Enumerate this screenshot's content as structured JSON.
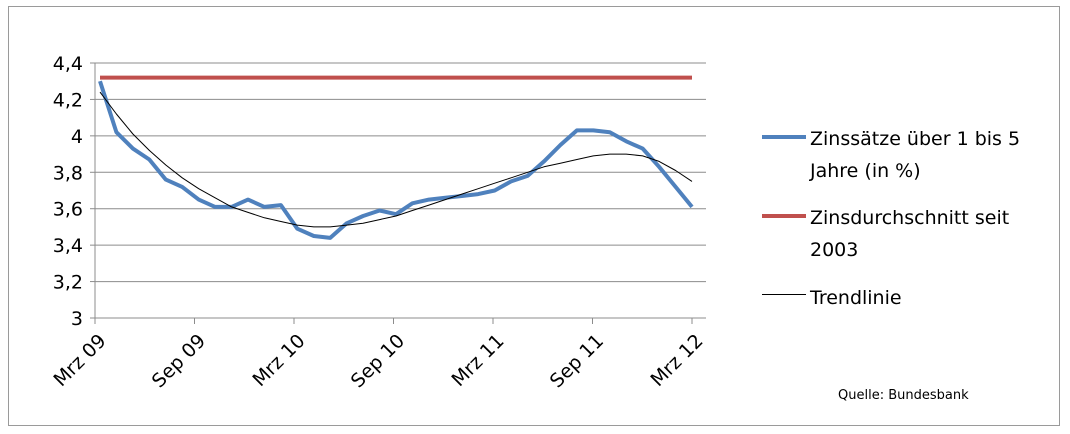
{
  "chart_data": {
    "type": "line",
    "categories": [
      "Mrz 09",
      null,
      null,
      null,
      null,
      null,
      "Sep 09",
      null,
      null,
      null,
      null,
      null,
      "Mrz 10",
      null,
      null,
      null,
      null,
      null,
      "Sep 10",
      null,
      null,
      null,
      null,
      null,
      "Mrz 11",
      null,
      null,
      null,
      null,
      null,
      "Sep 11",
      null,
      null,
      null,
      null,
      null,
      "Mrz 12"
    ],
    "series": [
      {
        "name": "Zinssätze über 1 bis 5 Jahre (in %)",
        "color": "#4f81bd",
        "values": [
          4.3,
          4.02,
          3.93,
          3.87,
          3.76,
          3.72,
          3.65,
          3.61,
          3.61,
          3.65,
          3.61,
          3.62,
          3.49,
          3.45,
          3.44,
          3.52,
          3.56,
          3.59,
          3.57,
          3.63,
          3.65,
          3.66,
          3.67,
          3.68,
          3.7,
          3.75,
          3.78,
          3.86,
          3.95,
          4.03,
          4.03,
          4.02,
          3.97,
          3.93,
          3.83,
          3.72,
          3.61
        ]
      },
      {
        "name": "Zinsdurchschnitt seit 2003",
        "color": "#c0504d",
        "values": [
          4.32,
          4.32,
          4.32,
          4.32,
          4.32,
          4.32,
          4.32,
          4.32,
          4.32,
          4.32,
          4.32,
          4.32,
          4.32,
          4.32,
          4.32,
          4.32,
          4.32,
          4.32,
          4.32,
          4.32,
          4.32,
          4.32,
          4.32,
          4.32,
          4.32,
          4.32,
          4.32,
          4.32,
          4.32,
          4.32,
          4.32,
          4.32,
          4.32,
          4.32,
          4.32,
          4.32,
          4.32
        ]
      },
      {
        "name": "Trendlinie",
        "color": "#000000",
        "values": [
          4.24,
          4.12,
          4.01,
          3.92,
          3.84,
          3.77,
          3.71,
          3.66,
          3.61,
          3.58,
          3.55,
          3.53,
          3.51,
          3.5,
          3.5,
          3.51,
          3.52,
          3.54,
          3.56,
          3.59,
          3.62,
          3.65,
          3.68,
          3.71,
          3.74,
          3.77,
          3.8,
          3.83,
          3.85,
          3.87,
          3.89,
          3.9,
          3.9,
          3.89,
          3.86,
          3.81,
          3.75
        ]
      }
    ],
    "ylim": [
      3,
      4.4
    ],
    "yticks": [
      3,
      {
        "value": 3.2,
        "label": "3,2"
      },
      {
        "value": 3.4,
        "label": "3,4"
      },
      {
        "value": 3.6,
        "label": "3,6"
      },
      {
        "value": 3.8,
        "label": "3,8"
      },
      4,
      {
        "value": 4.2,
        "label": "4,2"
      },
      {
        "value": 4.4,
        "label": "4,4"
      }
    ],
    "grid": true,
    "legend": "right",
    "annotation": "Quelle:  Bundesbank"
  }
}
